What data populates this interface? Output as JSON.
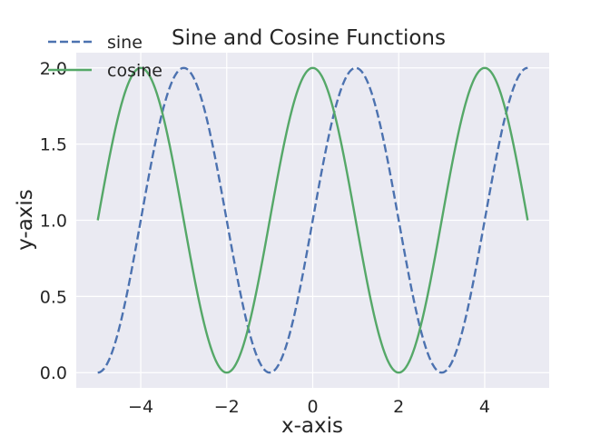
{
  "chart_data": {
    "type": "line",
    "title": "Sine and Cosine Functions",
    "xlabel": "x-axis",
    "ylabel": "y-axis",
    "xlim": [
      -5.5,
      5.5
    ],
    "ylim": [
      -0.1,
      2.1
    ],
    "xticks": [
      -4,
      -2,
      0,
      2,
      4
    ],
    "xtick_labels": [
      "−4",
      "−2",
      "0",
      "2",
      "4"
    ],
    "yticks": [
      0.0,
      0.5,
      1.0,
      1.5,
      2.0
    ],
    "ytick_labels": [
      "0.0",
      "0.5",
      "1.0",
      "1.5",
      "2.0"
    ],
    "grid": true,
    "legend_position": "top-left",
    "series": [
      {
        "name": "sine",
        "color": "#4c72b0",
        "style": "dashed",
        "expression": "sin(pi*x/2) + 1",
        "x": [
          -5,
          -4.5,
          -4,
          -3.5,
          -3,
          -2.5,
          -2,
          -1.5,
          -1,
          -0.5,
          0,
          0.5,
          1,
          1.5,
          2,
          2.5,
          3,
          3.5,
          4,
          4.5,
          5
        ],
        "values": [
          0.0,
          0.29,
          1.0,
          1.71,
          2.0,
          1.71,
          1.0,
          0.29,
          0.0,
          0.29,
          1.0,
          1.71,
          2.0,
          1.71,
          1.0,
          0.29,
          0.0,
          0.29,
          1.0,
          1.71,
          2.0
        ]
      },
      {
        "name": "cosine",
        "color": "#55a868",
        "style": "solid",
        "expression": "cos(pi*x/2) + 1",
        "x": [
          -5,
          -4.5,
          -4,
          -3.5,
          -3,
          -2.5,
          -2,
          -1.5,
          -1,
          -0.5,
          0,
          0.5,
          1,
          1.5,
          2,
          2.5,
          3,
          3.5,
          4,
          4.5,
          5
        ],
        "values": [
          1.0,
          1.71,
          2.0,
          1.71,
          1.0,
          0.29,
          0.0,
          0.29,
          1.0,
          1.71,
          2.0,
          1.71,
          1.0,
          0.29,
          0.0,
          0.29,
          1.0,
          1.71,
          2.0,
          1.71,
          1.0
        ]
      }
    ]
  },
  "colors": {
    "plot_background": "#eaeaf2",
    "grid": "#ffffff",
    "text": "#262626"
  }
}
